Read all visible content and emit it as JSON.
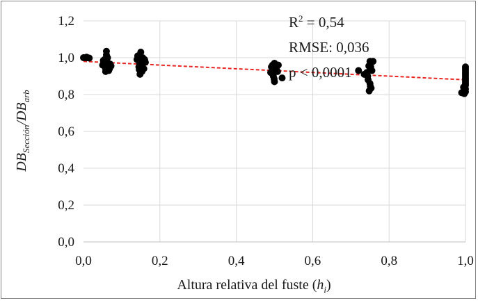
{
  "chart_data": {
    "type": "scatter",
    "title": "",
    "xlabel": {
      "main": "Altura relativa del fuste (",
      "italic": "h",
      "sub": "i",
      "tail": ")"
    },
    "ylabel": {
      "a": "DB",
      "a_sub": "Sección",
      "slash": "/",
      "b": "DB",
      "b_sub": "arb"
    },
    "xlim": [
      0,
      1
    ],
    "ylim": [
      0,
      1.2
    ],
    "x_ticks": [
      0,
      0.2,
      0.4,
      0.6,
      0.8,
      1.0
    ],
    "y_ticks": [
      0,
      0.2,
      0.4,
      0.6,
      0.8,
      1.0,
      1.2
    ],
    "x_tick_labels": [
      "0,0",
      "0,2",
      "0,4",
      "0,6",
      "0,8",
      "1,0"
    ],
    "y_tick_labels": [
      "0,0",
      "0,2",
      "0,4",
      "0,6",
      "0,8",
      "1,0",
      "1,2"
    ],
    "grid": true,
    "colors": {
      "points": "#000000",
      "trend": "#e8251f",
      "grid": "#d9d9d9"
    },
    "annotations": [
      {
        "base": "R",
        "sup": "2",
        "rest": " = 0,54"
      },
      {
        "text": "RMSE: 0,036"
      },
      {
        "text": "p < 0,0001"
      }
    ],
    "trendline": {
      "style": "dashed",
      "x": [
        0,
        1.0
      ],
      "y": [
        0.98,
        0.88
      ]
    },
    "series": [
      {
        "points": [
          [
            0.0,
            1.0
          ],
          [
            0.005,
            1.0
          ],
          [
            0.01,
            1.0
          ],
          [
            0.015,
            0.998
          ],
          [
            0.008,
            1.003
          ],
          [
            0.05,
            0.96
          ],
          [
            0.055,
            0.99
          ],
          [
            0.06,
            0.98
          ],
          [
            0.06,
            1.035
          ],
          [
            0.062,
            0.95
          ],
          [
            0.058,
            0.925
          ],
          [
            0.065,
            0.97
          ],
          [
            0.07,
            0.965
          ],
          [
            0.052,
            0.985
          ],
          [
            0.063,
            1.0
          ],
          [
            0.068,
            0.94
          ],
          [
            0.057,
            0.945
          ],
          [
            0.072,
            0.955
          ],
          [
            0.06,
            1.015
          ],
          [
            0.066,
            0.93
          ],
          [
            0.054,
            0.975
          ],
          [
            0.061,
            0.96
          ],
          [
            0.14,
            0.99
          ],
          [
            0.145,
            0.95
          ],
          [
            0.15,
            0.98
          ],
          [
            0.15,
            1.03
          ],
          [
            0.148,
            0.91
          ],
          [
            0.152,
            0.96
          ],
          [
            0.155,
            1.0
          ],
          [
            0.158,
            0.94
          ],
          [
            0.146,
            0.935
          ],
          [
            0.16,
            0.99
          ],
          [
            0.162,
            0.975
          ],
          [
            0.142,
            1.01
          ],
          [
            0.153,
            0.925
          ],
          [
            0.147,
            0.97
          ],
          [
            0.149,
            0.99
          ],
          [
            0.49,
            0.92
          ],
          [
            0.495,
            0.96
          ],
          [
            0.5,
            0.97
          ],
          [
            0.5,
            0.87
          ],
          [
            0.505,
            0.94
          ],
          [
            0.497,
            0.9
          ],
          [
            0.51,
            0.96
          ],
          [
            0.503,
            0.93
          ],
          [
            0.492,
            0.95
          ],
          [
            0.52,
            0.89
          ],
          [
            0.508,
            0.925
          ],
          [
            0.499,
            0.885
          ],
          [
            0.72,
            0.93
          ],
          [
            0.735,
            0.91
          ],
          [
            0.745,
            0.88
          ],
          [
            0.75,
            0.98
          ],
          [
            0.748,
            0.82
          ],
          [
            0.752,
            0.95
          ],
          [
            0.755,
            0.93
          ],
          [
            0.758,
            0.98
          ],
          [
            0.744,
            0.9
          ],
          [
            0.75,
            0.86
          ],
          [
            0.753,
            0.835
          ],
          [
            0.742,
            0.92
          ],
          [
            0.747,
            0.955
          ],
          [
            0.751,
            0.845
          ],
          [
            0.99,
            0.81
          ],
          [
            1.0,
            0.95
          ],
          [
            1.0,
            0.93
          ],
          [
            1.0,
            0.91
          ],
          [
            1.0,
            0.89
          ],
          [
            1.0,
            0.87
          ],
          [
            1.0,
            0.85
          ],
          [
            1.0,
            0.83
          ],
          [
            1.0,
            0.815
          ],
          [
            0.995,
            0.84
          ],
          [
            1.0,
            0.86
          ],
          [
            1.0,
            0.9
          ],
          [
            1.0,
            0.94
          ],
          [
            0.997,
            0.805
          ],
          [
            1.0,
            0.92
          ],
          [
            1.0,
            0.88
          ]
        ]
      }
    ]
  }
}
